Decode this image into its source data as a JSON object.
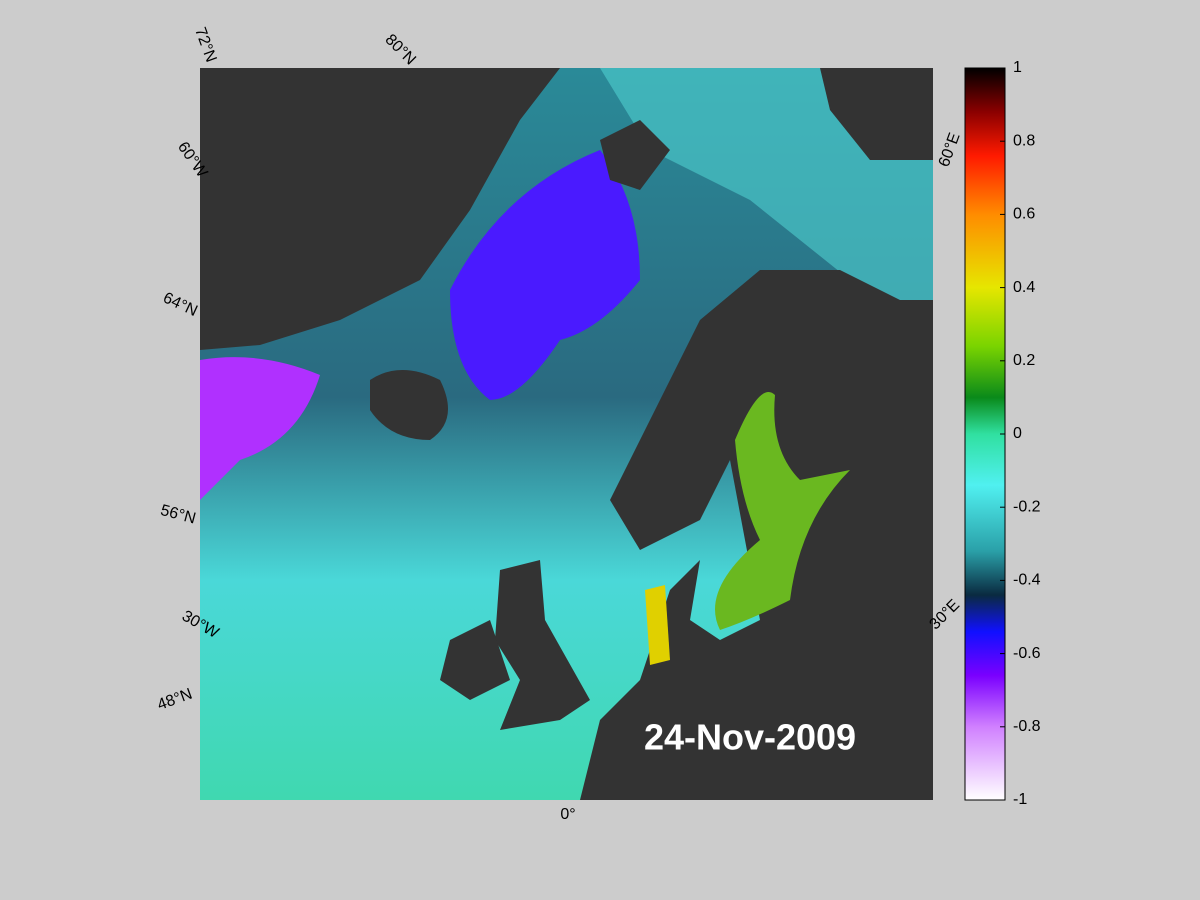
{
  "map": {
    "date": "24-Nov-2009",
    "grid_labels": [
      "72°N",
      "80°N",
      "60°W",
      "64°N",
      "56°N",
      "30°W",
      "48°N",
      "0°",
      "60°E",
      "30°E"
    ]
  },
  "colorbar": {
    "lim": [
      -1,
      1
    ],
    "ticks": [
      1,
      0.8,
      0.6,
      0.4,
      0.2,
      0,
      -0.2,
      -0.4,
      -0.6,
      -0.8,
      -1
    ]
  }
}
